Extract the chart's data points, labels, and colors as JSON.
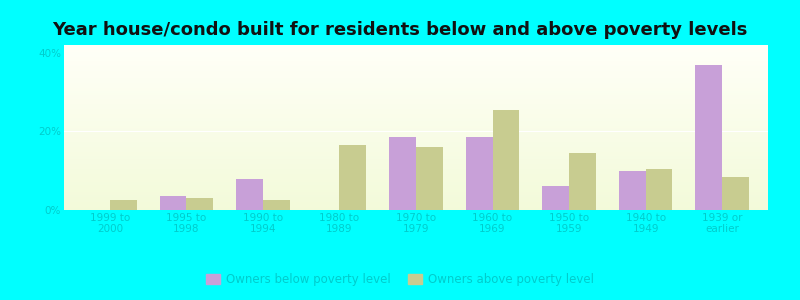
{
  "title": "Year house/condo built for residents below and above poverty levels",
  "categories": [
    "1999 to\n2000",
    "1995 to\n1998",
    "1990 to\n1994",
    "1980 to\n1989",
    "1970 to\n1979",
    "1960 to\n1969",
    "1950 to\n1959",
    "1940 to\n1949",
    "1939 or\nearlier"
  ],
  "below_poverty": [
    0.0,
    3.5,
    8.0,
    0.0,
    18.5,
    18.5,
    6.0,
    10.0,
    37.0
  ],
  "above_poverty": [
    2.5,
    3.0,
    2.5,
    16.5,
    16.0,
    25.5,
    14.5,
    10.5,
    8.5
  ],
  "below_color": "#c8a0d8",
  "above_color": "#c8cc90",
  "ylim": [
    0,
    42
  ],
  "yticks": [
    0,
    20,
    40
  ],
  "ytick_labels": [
    "0%",
    "20%",
    "40%"
  ],
  "background_color": "#00ffff",
  "title_fontsize": 13,
  "tick_fontsize": 7.5,
  "legend_fontsize": 8.5,
  "bar_width": 0.35,
  "legend_below": "Owners below poverty level",
  "legend_above": "Owners above poverty level"
}
